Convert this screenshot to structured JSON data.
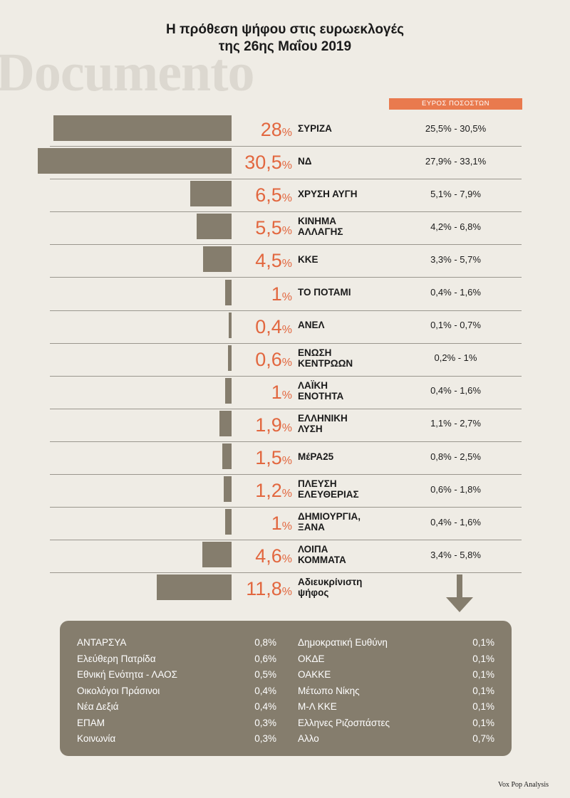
{
  "title": {
    "line1": "Η πρόθεση ψήφου στις ευρωεκλογές",
    "line2": "της 26ης Μαΐου 2019"
  },
  "logo_text": "Documento",
  "range_header": "ΕΥΡΟΣ ΠΟΣΟΣΤΩΝ",
  "colors": {
    "bar": "#857d6d",
    "accent": "#e2673f",
    "header_bg": "#e97a4e",
    "background": "#efece5"
  },
  "chart_data": {
    "type": "bar",
    "orientation": "horizontal",
    "percent_sign": "%",
    "categories": [
      "ΣΥΡΙΖΑ",
      "ΝΔ",
      "ΧΡΥΣΗ ΑΥΓΗ",
      "ΚΙΝΗΜΑ\nΑΛΛΑΓΗΣ",
      "ΚΚΕ",
      "ΤΟ ΠΟΤΑΜΙ",
      "ΑΝΕΛ",
      "ΕΝΩΣΗ\nΚΕΝΤΡΩΩΝ",
      "ΛΑΪΚΗ\nΕΝΟΤΗΤΑ",
      "ΕΛΛΗΝΙΚΗ\nΛΥΣΗ",
      "ΜέΡΑ25",
      "ΠΛΕΥΣΗ\nΕΛΕΥΘΕΡΙΑΣ",
      "ΔΗΜΙΟΥΡΓΙΑ,\nΞΑΝΑ",
      "ΛΟΙΠΑ\nΚΟΜΜΑΤΑ",
      "Αδιευκρίνιστη\nψήφος"
    ],
    "value_labels": [
      "28",
      "30,5",
      "6,5",
      "5,5",
      "4,5",
      "1",
      "0,4",
      "0,6",
      "1",
      "1,9",
      "1,5",
      "1,2",
      "1",
      "4,6",
      "11,8"
    ],
    "values": [
      28,
      30.5,
      6.5,
      5.5,
      4.5,
      1,
      0.4,
      0.6,
      1,
      1.9,
      1.5,
      1.2,
      1,
      4.6,
      11.8
    ],
    "ranges": [
      "25,5% - 30,5%",
      "27,9% - 33,1%",
      "5,1% - 7,9%",
      "4,2% - 6,8%",
      "3,3% - 5,7%",
      "0,4% - 1,6%",
      "0,1% - 0,7%",
      "0,2% - 1%",
      "0,4% - 1,6%",
      "1,1% - 2,7%",
      "0,8% - 2,5%",
      "0,6% - 1,8%",
      "0,4% - 1,6%",
      "3,4% - 5,8%",
      ""
    ],
    "xlim": [
      0,
      30.5
    ]
  },
  "others": {
    "left": [
      {
        "name": "ΑΝΤΑΡΣΥΑ",
        "value": "0,8%"
      },
      {
        "name": "Ελεύθερη Πατρίδα",
        "value": "0,6%"
      },
      {
        "name": "Εθνική Ενότητα - ΛΑΟΣ",
        "value": "0,5%"
      },
      {
        "name": "Οικολόγοι Πράσινοι",
        "value": "0,4%"
      },
      {
        "name": "Νέα Δεξιά",
        "value": "0,4%"
      },
      {
        "name": "ΕΠΑΜ",
        "value": "0,3%"
      },
      {
        "name": "Κοινωνία",
        "value": "0,3%"
      }
    ],
    "right": [
      {
        "name": "Δημοκρατική Ευθύνη",
        "value": "0,1%"
      },
      {
        "name": "ΟΚΔΕ",
        "value": "0,1%"
      },
      {
        "name": "ΟΑΚΚΕ",
        "value": "0,1%"
      },
      {
        "name": "Μέτωπο Νίκης",
        "value": "0,1%"
      },
      {
        "name": "Μ-Λ ΚΚΕ",
        "value": "0,1%"
      },
      {
        "name": "Ελληνες Ριζοσπάστες",
        "value": "0,1%"
      },
      {
        "name": "Αλλο",
        "value": "0,7%"
      }
    ]
  },
  "source": "Vox Pop Analysis"
}
